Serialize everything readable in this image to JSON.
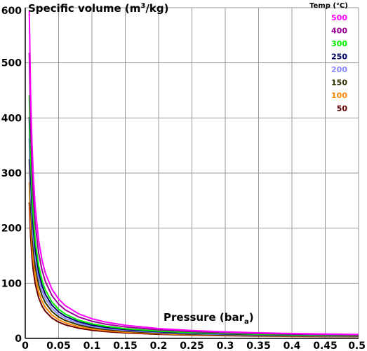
{
  "chart_data": {
    "type": "line",
    "ylabel": {
      "main": "Specific volume (m",
      "sup": "3",
      "tail": "/kg)"
    },
    "xlabel": {
      "main": "Pressure (bar",
      "sub": "a",
      "tail": ")"
    },
    "xlim": [
      0,
      0.5
    ],
    "ylim": [
      0,
      600
    ],
    "grid": true,
    "legend_placement": "top-right",
    "x_ticks": [
      "0",
      "0.05",
      "0.1",
      "0.15",
      "0.2",
      "0.25",
      "0.3",
      "0.35",
      "0.4",
      "0.45",
      "0.5"
    ],
    "x_tick_values": [
      0,
      0.05,
      0.1,
      0.15,
      0.2,
      0.25,
      0.3,
      0.35,
      0.4,
      0.45,
      0.5
    ],
    "y_ticks": [
      "0",
      "100",
      "200",
      "300",
      "400",
      "500",
      "600"
    ],
    "y_tick_values": [
      0,
      100,
      200,
      300,
      400,
      500,
      600
    ],
    "legend_title": "Temp (°C)",
    "x_points": [
      0.004,
      0.005,
      0.006,
      0.008,
      0.01,
      0.012,
      0.015,
      0.02,
      0.025,
      0.03,
      0.04,
      0.05,
      0.06,
      0.08,
      0.1,
      0.12,
      0.15,
      0.2,
      0.25,
      0.3,
      0.35,
      0.4,
      0.45,
      0.5
    ],
    "series": [
      {
        "name": "500",
        "color": "#ff00ff",
        "start": 0.006,
        "constant": 3.57
      },
      {
        "name": "400",
        "color": "#990099",
        "start": 0.006,
        "constant": 3.11
      },
      {
        "name": "300",
        "color": "#00ee00",
        "start": 0.006,
        "constant": 2.645
      },
      {
        "name": "250",
        "color": "#000066",
        "start": 0.006,
        "constant": 2.41
      },
      {
        "name": "200",
        "color": "#8888ff",
        "start": 0.006,
        "constant": 2.18
      },
      {
        "name": "150",
        "color": "#333300",
        "start": 0.006,
        "constant": 1.95
      },
      {
        "name": "100",
        "color": "#ff8800",
        "start": 0.006,
        "constant": 1.7
      },
      {
        "name": "50",
        "color": "#660000",
        "start": 0.006,
        "constant": 1.48
      }
    ]
  }
}
